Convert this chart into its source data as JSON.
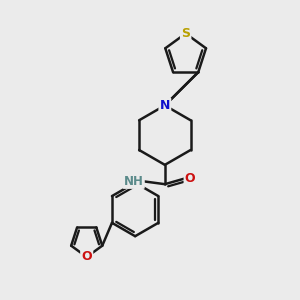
{
  "bg_color": "#ebebeb",
  "bond_color": "#1a1a1a",
  "S_color": "#b8a000",
  "N_color": "#1010cc",
  "O_color": "#cc1010",
  "NH_color": "#5a8a8a",
  "bond_width": 1.8,
  "figsize": [
    3.0,
    3.0
  ],
  "dpi": 100,
  "xlim": [
    0,
    10
  ],
  "ylim": [
    0,
    10
  ]
}
